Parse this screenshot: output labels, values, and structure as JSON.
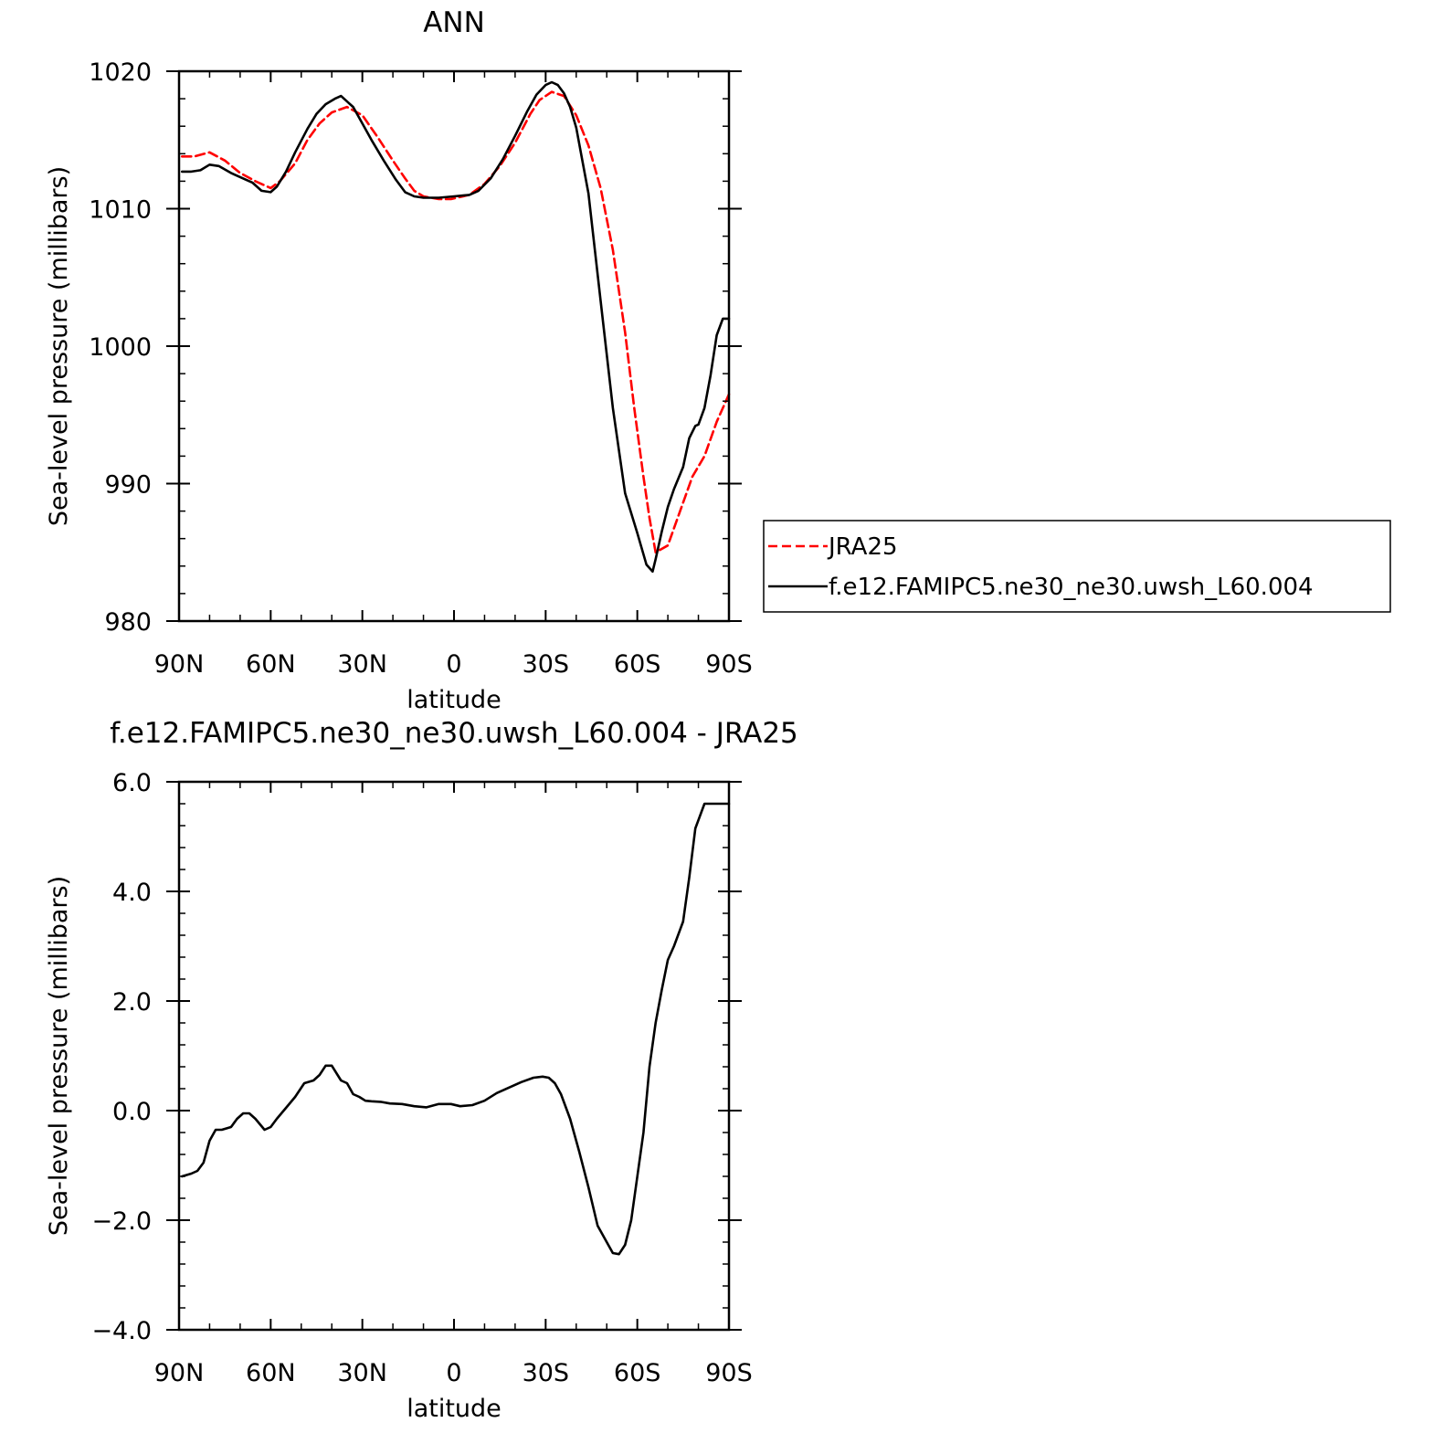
{
  "colors": {
    "model": "#000000",
    "obs": "#ff0000"
  },
  "chart_data": [
    {
      "type": "line",
      "title": "ANN",
      "xlabel": "latitude",
      "ylabel": "Sea-level pressure (millibars)",
      "xlim": [
        90,
        -90
      ],
      "ylim": [
        980,
        1020
      ],
      "xticks": [
        90,
        60,
        30,
        0,
        -30,
        -60,
        -90
      ],
      "xtick_labels": [
        "90N",
        "60N",
        "30N",
        "0",
        "30S",
        "60S",
        "90S"
      ],
      "yticks": [
        980,
        990,
        1000,
        1010,
        1020
      ],
      "ytick_labels": [
        "980",
        "990",
        "1000",
        "1010",
        "1020"
      ],
      "legend": {
        "placement": "right",
        "entries": [
          "JRA25",
          "f.e12.FAMIPC5.ne30_ne30.uwsh_L60.004"
        ]
      },
      "series": [
        {
          "name": "JRA25",
          "style": "dashed",
          "color": "#ff0000",
          "x": [
            89,
            85,
            80,
            75,
            70,
            65,
            60,
            57,
            52,
            48,
            44,
            40,
            35,
            30,
            25,
            20,
            16,
            13,
            10,
            5,
            1,
            -5,
            -10,
            -15,
            -20,
            -25,
            -28,
            -32,
            -36,
            -40,
            -44,
            -48,
            -52,
            -56,
            -59,
            -62,
            -64,
            -66,
            -70,
            -74,
            -78,
            -82,
            -86,
            -90
          ],
          "y": [
            1013.8,
            1013.8,
            1014.1,
            1013.5,
            1012.6,
            1012.0,
            1011.5,
            1012.0,
            1013.3,
            1015.0,
            1016.2,
            1017.0,
            1017.4,
            1016.8,
            1015.2,
            1013.5,
            1012.2,
            1011.3,
            1010.9,
            1010.7,
            1010.7,
            1011.0,
            1011.8,
            1013.1,
            1014.8,
            1016.9,
            1017.9,
            1018.5,
            1018.2,
            1016.8,
            1014.6,
            1011.5,
            1007.0,
            1001.0,
            995.5,
            990.5,
            987.5,
            985.0,
            985.5,
            988.0,
            990.5,
            992.0,
            994.5,
            996.5
          ]
        },
        {
          "name": "f.e12.FAMIPC5.ne30_ne30.uwsh_L60.004",
          "style": "solid",
          "color": "#000000",
          "x": [
            89,
            86,
            83,
            80,
            77,
            73,
            70,
            66,
            63,
            60,
            58,
            55,
            52,
            48,
            45,
            42,
            39,
            37,
            35,
            33,
            30,
            27,
            23,
            19,
            16,
            13,
            10,
            5,
            0,
            -5,
            -8,
            -12,
            -16,
            -20,
            -24,
            -27,
            -30,
            -32,
            -34,
            -36,
            -38,
            -40,
            -44,
            -48,
            -52,
            -56,
            -60,
            -63,
            -65,
            -66,
            -68,
            -70,
            -72,
            -75,
            -77,
            -79,
            -80,
            -82,
            -84,
            -86,
            -88,
            -90
          ],
          "y": [
            1012.7,
            1012.7,
            1012.8,
            1013.2,
            1013.1,
            1012.6,
            1012.3,
            1011.9,
            1011.3,
            1011.2,
            1011.6,
            1012.7,
            1014.1,
            1015.8,
            1016.9,
            1017.6,
            1018.0,
            1018.2,
            1017.8,
            1017.4,
            1016.2,
            1015.0,
            1013.5,
            1012.1,
            1011.2,
            1010.9,
            1010.8,
            1010.8,
            1010.9,
            1011.0,
            1011.3,
            1012.2,
            1013.6,
            1015.3,
            1017.1,
            1018.3,
            1019.0,
            1019.2,
            1019.0,
            1018.4,
            1017.4,
            1015.9,
            1011.1,
            1003.3,
            995.5,
            989.3,
            986.4,
            984.1,
            983.6,
            984.5,
            986.5,
            988.3,
            989.6,
            991.2,
            993.3,
            994.2,
            994.3,
            995.5,
            997.9,
            1000.8,
            1002.0,
            1002.0
          ]
        }
      ]
    },
    {
      "type": "line",
      "title": "f.e12.FAMIPC5.ne30_ne30.uwsh_L60.004 - JRA25",
      "xlabel": "latitude",
      "ylabel": "Sea-level pressure (millibars)",
      "xlim": [
        90,
        -90
      ],
      "ylim": [
        -4,
        6
      ],
      "xticks": [
        90,
        60,
        30,
        0,
        -30,
        -60,
        -90
      ],
      "xtick_labels": [
        "90N",
        "60N",
        "30N",
        "0",
        "30S",
        "60S",
        "90S"
      ],
      "yticks": [
        -4,
        -2,
        0,
        2,
        4,
        6
      ],
      "ytick_labels": [
        "-4.0",
        "-2.0",
        "0.0",
        "2.0",
        "4.0",
        "6.0"
      ],
      "series": [
        {
          "style": "solid",
          "color": "#000000",
          "x": [
            89,
            86,
            84,
            82,
            80,
            78,
            76,
            73,
            71,
            69,
            67,
            65,
            62,
            60,
            58,
            55,
            52,
            49,
            46,
            44,
            42,
            40,
            37,
            35,
            33,
            31,
            29,
            27,
            24,
            21,
            17,
            13,
            9,
            5,
            1,
            -2,
            -6,
            -10,
            -14,
            -18,
            -22,
            -26,
            -29,
            -31,
            -33,
            -35,
            -38,
            -41,
            -44,
            -47,
            -50,
            -52,
            -54,
            -56,
            -58,
            -60,
            -62,
            -64,
            -66,
            -68,
            -70,
            -72,
            -75,
            -77,
            -79,
            -82,
            -85,
            -88,
            -90
          ],
          "y": [
            -1.2,
            -1.15,
            -1.1,
            -0.95,
            -0.55,
            -0.35,
            -0.35,
            -0.3,
            -0.15,
            -0.05,
            -0.05,
            -0.15,
            -0.35,
            -0.3,
            -0.15,
            0.05,
            0.25,
            0.5,
            0.55,
            0.65,
            0.82,
            0.82,
            0.55,
            0.5,
            0.3,
            0.25,
            0.18,
            0.17,
            0.16,
            0.13,
            0.12,
            0.08,
            0.06,
            0.12,
            0.12,
            0.08,
            0.1,
            0.18,
            0.32,
            0.42,
            0.52,
            0.6,
            0.62,
            0.6,
            0.5,
            0.3,
            -0.15,
            -0.75,
            -1.4,
            -2.1,
            -2.4,
            -2.6,
            -2.62,
            -2.45,
            -2.0,
            -1.2,
            -0.4,
            0.8,
            1.6,
            2.2,
            2.75,
            3.0,
            3.45,
            4.25,
            5.15,
            5.6,
            5.6,
            5.6,
            5.6
          ]
        }
      ]
    }
  ]
}
